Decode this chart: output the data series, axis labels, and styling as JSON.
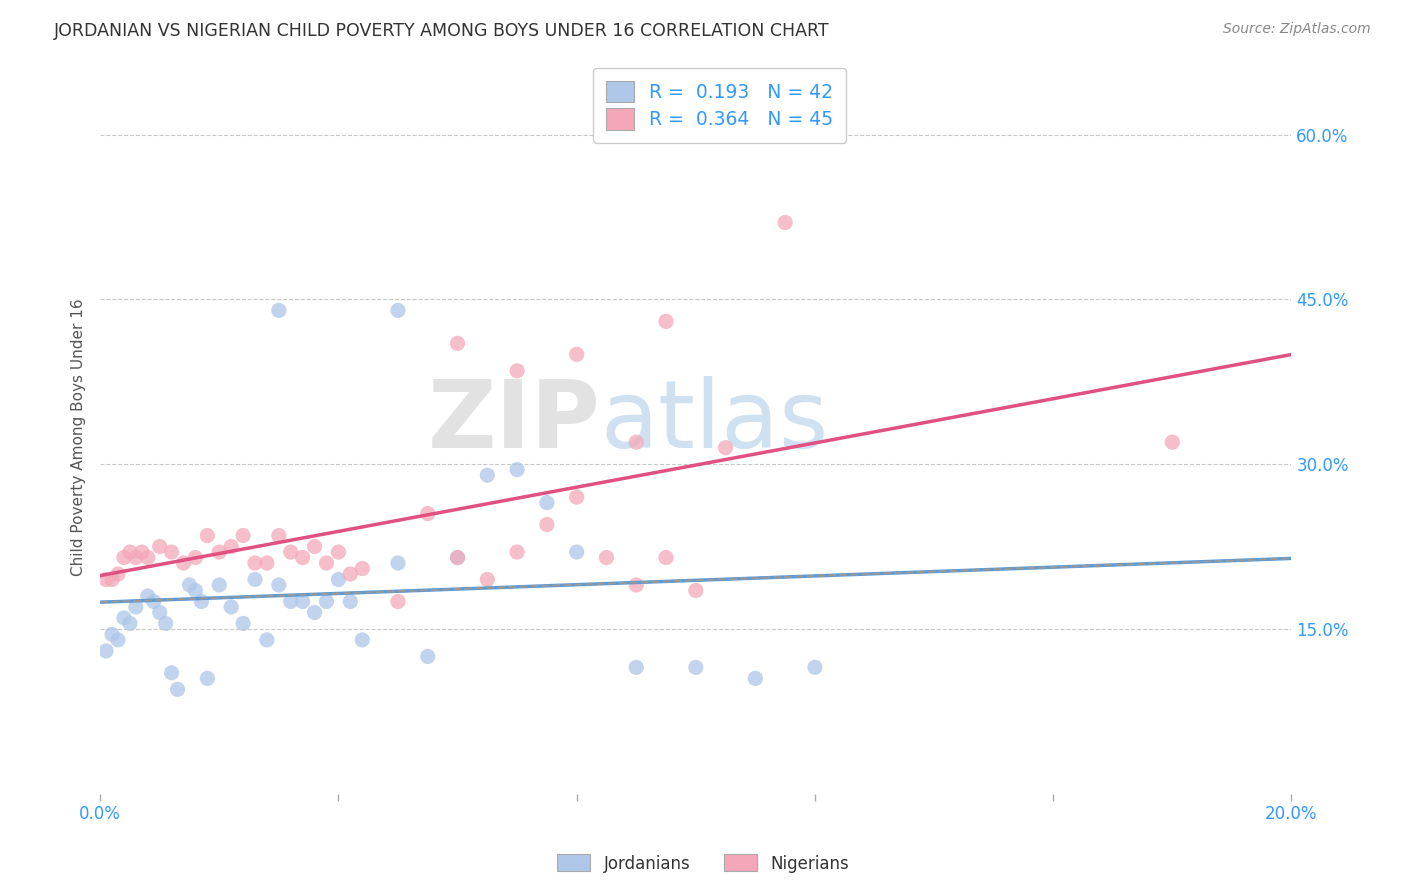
{
  "title": "JORDANIAN VS NIGERIAN CHILD POVERTY AMONG BOYS UNDER 16 CORRELATION CHART",
  "source": "Source: ZipAtlas.com",
  "ylabel": "Child Poverty Among Boys Under 16",
  "x_min": 0.0,
  "x_max": 0.2,
  "y_min": 0.0,
  "y_max": 0.65,
  "x_ticks": [
    0.0,
    0.04,
    0.08,
    0.12,
    0.16,
    0.2
  ],
  "x_tick_labels": [
    "0.0%",
    "",
    "",
    "",
    "",
    "20.0%"
  ],
  "y_ticks_right": [
    0.15,
    0.3,
    0.45,
    0.6
  ],
  "y_tick_labels_right": [
    "15.0%",
    "30.0%",
    "45.0%",
    "60.0%"
  ],
  "jordan_R": 0.193,
  "jordan_N": 42,
  "nigeria_R": 0.364,
  "nigeria_N": 45,
  "jordan_color": "#aec6e8",
  "nigeria_color": "#f4a7b9",
  "jordan_line_color": "#5b9bd5",
  "nigeria_line_color": "#e05080",
  "jordan_scatter_x": [
    0.001,
    0.002,
    0.003,
    0.004,
    0.005,
    0.006,
    0.008,
    0.009,
    0.01,
    0.011,
    0.012,
    0.013,
    0.015,
    0.016,
    0.017,
    0.018,
    0.02,
    0.022,
    0.024,
    0.026,
    0.028,
    0.03,
    0.032,
    0.034,
    0.036,
    0.038,
    0.04,
    0.042,
    0.044,
    0.05,
    0.055,
    0.06,
    0.065,
    0.07,
    0.075,
    0.08,
    0.09,
    0.1,
    0.11,
    0.12,
    0.05,
    0.03
  ],
  "jordan_scatter_y": [
    0.13,
    0.145,
    0.14,
    0.16,
    0.155,
    0.17,
    0.18,
    0.175,
    0.165,
    0.155,
    0.11,
    0.095,
    0.19,
    0.185,
    0.175,
    0.105,
    0.19,
    0.17,
    0.155,
    0.195,
    0.14,
    0.19,
    0.175,
    0.175,
    0.165,
    0.175,
    0.195,
    0.175,
    0.14,
    0.21,
    0.125,
    0.215,
    0.29,
    0.295,
    0.265,
    0.22,
    0.115,
    0.115,
    0.105,
    0.115,
    0.44,
    0.44
  ],
  "nigeria_scatter_x": [
    0.001,
    0.002,
    0.003,
    0.004,
    0.005,
    0.006,
    0.007,
    0.008,
    0.01,
    0.012,
    0.014,
    0.016,
    0.018,
    0.02,
    0.022,
    0.024,
    0.026,
    0.028,
    0.03,
    0.032,
    0.034,
    0.036,
    0.038,
    0.04,
    0.042,
    0.044,
    0.05,
    0.055,
    0.06,
    0.065,
    0.07,
    0.075,
    0.08,
    0.085,
    0.09,
    0.095,
    0.1,
    0.06,
    0.07,
    0.08,
    0.095,
    0.09,
    0.105,
    0.18,
    0.115
  ],
  "nigeria_scatter_y": [
    0.195,
    0.195,
    0.2,
    0.215,
    0.22,
    0.215,
    0.22,
    0.215,
    0.225,
    0.22,
    0.21,
    0.215,
    0.235,
    0.22,
    0.225,
    0.235,
    0.21,
    0.21,
    0.235,
    0.22,
    0.215,
    0.225,
    0.21,
    0.22,
    0.2,
    0.205,
    0.175,
    0.255,
    0.215,
    0.195,
    0.22,
    0.245,
    0.27,
    0.215,
    0.19,
    0.215,
    0.185,
    0.41,
    0.385,
    0.4,
    0.43,
    0.32,
    0.315,
    0.32,
    0.52
  ],
  "watermark_zip": "ZIP",
  "watermark_atlas": "atlas",
  "background_color": "#ffffff",
  "grid_color": "#c8c8c8",
  "title_color": "#333333",
  "axis_label_color": "#3399ff",
  "tick_label_color": "#3399ff"
}
